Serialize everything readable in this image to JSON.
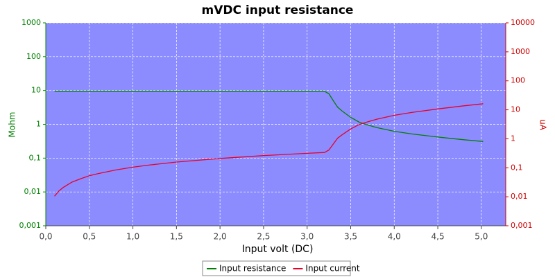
{
  "chart_data": {
    "type": "line",
    "title": "mVDC input resistance",
    "xlabel": "Input volt (DC)",
    "ylabel": "Mohm",
    "y2label": "uA",
    "x": [
      0.1,
      0.15,
      0.2,
      0.3,
      0.4,
      0.5,
      0.6,
      0.8,
      1.0,
      1.2,
      1.5,
      2.0,
      2.5,
      3.0,
      3.2,
      3.25,
      3.3,
      3.35,
      3.4,
      3.5,
      3.6,
      3.7,
      3.8,
      4.0,
      4.2,
      4.5,
      4.8,
      5.02
    ],
    "series": [
      {
        "name": "Input resistance",
        "color": "#008000",
        "axis": "y",
        "values": [
          9.5,
          9.5,
          9.5,
          9.5,
          9.5,
          9.5,
          9.5,
          9.5,
          9.5,
          9.5,
          9.5,
          9.5,
          9.5,
          9.5,
          9.5,
          8,
          5,
          3.2,
          2.5,
          1.6,
          1.15,
          0.95,
          0.8,
          0.62,
          0.52,
          0.42,
          0.35,
          0.31
        ]
      },
      {
        "name": "Input current",
        "color": "#e8002a",
        "axis": "y2",
        "values": [
          0.0105,
          0.0158,
          0.021,
          0.032,
          0.042,
          0.053,
          0.063,
          0.084,
          0.105,
          0.126,
          0.158,
          0.21,
          0.263,
          0.316,
          0.337,
          0.41,
          0.66,
          1.05,
          1.36,
          2.19,
          3.13,
          3.89,
          4.75,
          6.45,
          8.08,
          10.7,
          13.7,
          16.2
        ]
      }
    ],
    "xlim": [
      0,
      5.28
    ],
    "xticks": [
      {
        "value": 0,
        "label": "0,0"
      },
      {
        "value": 0.5,
        "label": "0,5"
      },
      {
        "value": 1,
        "label": "1,0"
      },
      {
        "value": 1.5,
        "label": "1,5"
      },
      {
        "value": 2,
        "label": "2,0"
      },
      {
        "value": 2.5,
        "label": "2,5"
      },
      {
        "value": 3,
        "label": "3,0"
      },
      {
        "value": 3.5,
        "label": "3,5"
      },
      {
        "value": 4,
        "label": "4,0"
      },
      {
        "value": 4.5,
        "label": "4,5"
      },
      {
        "value": 5,
        "label": "5,0"
      }
    ],
    "ylim": [
      0.001,
      1000
    ],
    "yticks": [
      {
        "value": 0.001,
        "label": "0,001"
      },
      {
        "value": 0.01,
        "label": "0,01"
      },
      {
        "value": 0.1,
        "label": "0,1"
      },
      1,
      10,
      100,
      1000
    ],
    "y2lim": [
      0.001,
      10000
    ],
    "y2ticks": [
      {
        "value": 0.001,
        "label": "0,001"
      },
      {
        "value": 0.01,
        "label": "0,01"
      },
      {
        "value": 0.1,
        "label": "0,1"
      },
      1,
      10,
      100,
      1000,
      10000
    ],
    "ylog": true,
    "y2log": true,
    "grid": true,
    "legend": "bottom"
  }
}
